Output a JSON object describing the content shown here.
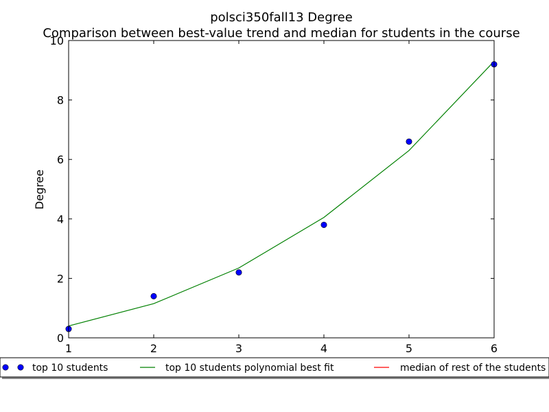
{
  "chart_data": {
    "type": "line",
    "title": "polsci350fall13 Degree",
    "subtitle": "Comparison between best-value trend and median for students in the course",
    "xlabel": "",
    "ylabel": "Degree",
    "xlim": [
      1,
      6
    ],
    "ylim": [
      0,
      10
    ],
    "xticks": [
      1,
      2,
      3,
      4,
      5,
      6
    ],
    "yticks": [
      0,
      2,
      4,
      6,
      8,
      10
    ],
    "grid": false,
    "legend_position": "bottom",
    "series": [
      {
        "name": "top 10 students",
        "kind": "scatter",
        "color": "#0000ff",
        "x": [
          1,
          2,
          3,
          4,
          5,
          6
        ],
        "y": [
          0.3,
          1.4,
          2.2,
          3.8,
          6.6,
          9.2
        ]
      },
      {
        "name": "top 10 students polynomial best fit",
        "kind": "line",
        "color": "#008000",
        "x": [
          1,
          2,
          3,
          4,
          5,
          6
        ],
        "y": [
          0.4,
          1.15,
          2.35,
          4.05,
          6.3,
          9.3
        ]
      },
      {
        "name": "median of rest of the students",
        "kind": "line",
        "color": "#ff0000",
        "x": [],
        "y": []
      }
    ]
  }
}
